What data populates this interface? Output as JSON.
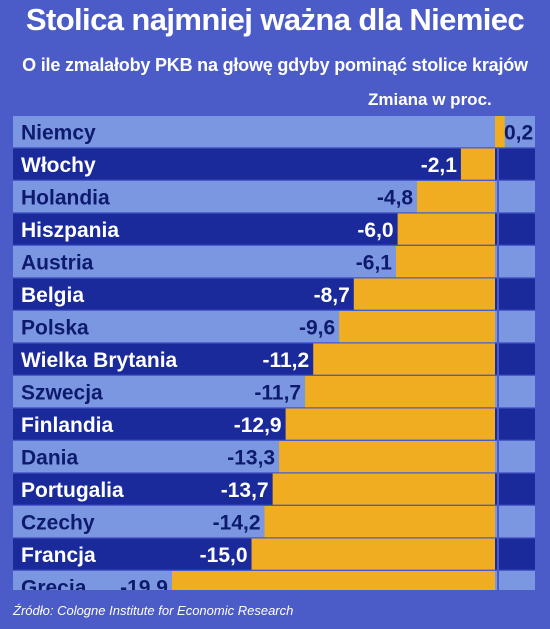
{
  "title": "Stolica najmniej ważna dla Niemiec",
  "subtitle": "O ile zmalałoby PKB na głowę gdyby pominąć stolice krajów",
  "unit_label": "Zmiana w proc.",
  "source": "Źródło: Cologne Institute for Economic Research",
  "colors": {
    "background": "#4b5bc8",
    "row_light": "#7b97e2",
    "row_dark": "#1a2a9b",
    "bar": "#f0ad22",
    "text_dark": "#0e1a6e",
    "text_light": "#ffffff"
  },
  "chart_data": {
    "type": "bar",
    "orientation": "horizontal",
    "categories": [
      "Niemcy",
      "Włochy",
      "Holandia",
      "Hiszpania",
      "Austria",
      "Belgia",
      "Polska",
      "Wielka Brytania",
      "Szwecja",
      "Finlandia",
      "Dania",
      "Portugalia",
      "Czechy",
      "Francja",
      "Grecja"
    ],
    "value_labels": [
      "0,2",
      "-2,1",
      "-4,8",
      "-6,0",
      "-6,1",
      "-8,7",
      "-9,6",
      "-11,2",
      "-11,7",
      "-12,9",
      "-13,3",
      "-13,7",
      "-14,2",
      "-15,0",
      "-19,9"
    ],
    "values": [
      0.2,
      -2.1,
      -4.8,
      -6.0,
      -6.1,
      -8.7,
      -9.6,
      -11.2,
      -11.7,
      -12.9,
      -13.3,
      -13.7,
      -14.2,
      -15.0,
      -19.9
    ],
    "xlim": [
      -19.9,
      0.2
    ],
    "grid": false,
    "legend": "none"
  }
}
